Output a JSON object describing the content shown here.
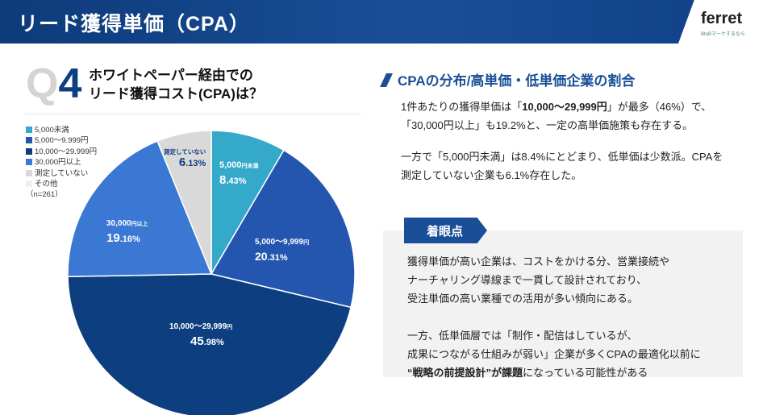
{
  "header": {
    "title": "リード獲得単価（CPA）",
    "logo_name": "ferret",
    "logo_tagline": "BtoBマーケするなら"
  },
  "question": {
    "q": "Q",
    "num": "4",
    "line1": "ホワイトペーパー経由での",
    "line2": "リード獲得コスト(CPA)は？"
  },
  "legend": {
    "items": [
      {
        "label": "5,000未満",
        "color": "#35a9c9"
      },
      {
        "label": "5,000～9.999円",
        "color": "#2456b0"
      },
      {
        "label": "10,000～29.999円",
        "color": "#0d3f80"
      },
      {
        "label": "30,000円以上",
        "color": "#3a78d4"
      },
      {
        "label": "測定していない",
        "color": "#d9d9d9"
      },
      {
        "label": "その他",
        "color": "#efefef"
      }
    ],
    "n": "（n=261）"
  },
  "chart_data": {
    "type": "pie",
    "categories": [
      "5,000円未満",
      "5,000～9,999円",
      "10,000～29,999円",
      "30,000円以上",
      "測定していない",
      "その他"
    ],
    "values": [
      8.43,
      20.31,
      45.98,
      19.16,
      6.13,
      0
    ],
    "colors": [
      "#35a9c9",
      "#2456b0",
      "#0d3f80",
      "#3a78d4",
      "#d9d9d9",
      "#efefef"
    ],
    "labels": [
      {
        "name": "5,000",
        "unit": "円未満",
        "int": "8",
        "dec": ".43%"
      },
      {
        "name": "5,000～9,999",
        "unit": "円",
        "int": "20",
        "dec": ".31%"
      },
      {
        "name": "10,000～29,999",
        "unit": "円",
        "int": "45",
        "dec": ".98%"
      },
      {
        "name": "30,000",
        "unit": "円以上",
        "int": "19",
        "dec": ".16%"
      },
      {
        "name": "測定していない",
        "unit": "",
        "int": "6",
        "dec": ".13%"
      }
    ]
  },
  "right": {
    "heading": "CPAの分布/高単価・低単価企業の割合",
    "p1a": "1件あたりの獲得単価は「",
    "p1b": "10,000〜29,999円",
    "p1c": "」が最多（46%）で、",
    "p2": "「30,000円以上」も19.2%と、一定の高単価施策も存在する。",
    "p3": "一方で「5,000円未満」は8.4%にとどまり、低単価は少数派。CPAを",
    "p4": "測定していない企業も6.1%存在した。"
  },
  "insight": {
    "badge": "着眼点",
    "l1": "獲得単価が高い企業は、コストをかける分、営業接続や",
    "l2": "ナーチャリング導線まで一貫して設計されており、",
    "l3": "受注単価の高い業種での活用が多い傾向にある。",
    "l4": "一方、低単価層では「制作・配信はしているが、",
    "l5": "成果につながる仕組みが弱い」企業が多くCPAの最適化以前に",
    "l6a": "“戦略の前提設計”が課題",
    "l6b": "になっている可能性がある"
  }
}
